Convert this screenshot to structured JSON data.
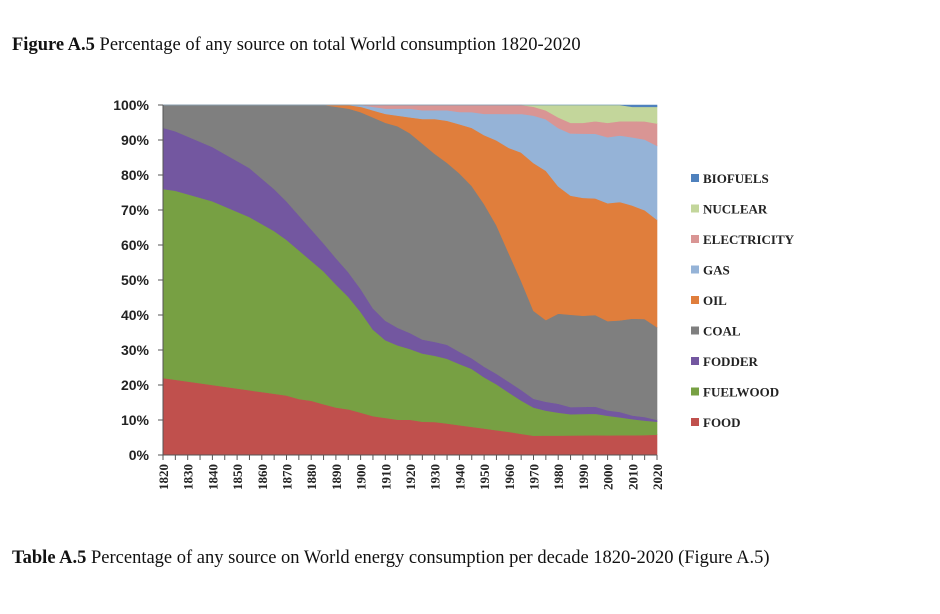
{
  "figure_caption": {
    "label": "Figure A.5",
    "text": "Percentage of any source on total World consumption 1820-2020"
  },
  "table_caption": {
    "label": "Table A.5",
    "text": "Percentage of any source on World energy consumption per decade 1820-2020 (Figure A.5)"
  },
  "chart_data": {
    "type": "area",
    "stacked": true,
    "normalized": true,
    "title": "",
    "xlabel": "",
    "ylabel": "",
    "x": [
      1820,
      1825,
      1830,
      1835,
      1840,
      1845,
      1850,
      1855,
      1860,
      1865,
      1870,
      1875,
      1880,
      1885,
      1890,
      1895,
      1900,
      1905,
      1910,
      1915,
      1920,
      1925,
      1930,
      1935,
      1940,
      1945,
      1950,
      1955,
      1960,
      1965,
      1970,
      1975,
      1980,
      1985,
      1990,
      1995,
      2000,
      2005,
      2010,
      2015,
      2020
    ],
    "x_ticks": [
      1820,
      1830,
      1840,
      1850,
      1860,
      1870,
      1880,
      1890,
      1900,
      1910,
      1920,
      1930,
      1940,
      1950,
      1960,
      1970,
      1980,
      1990,
      2000,
      2010,
      2020
    ],
    "y_ticks": [
      "0%",
      "10%",
      "20%",
      "30%",
      "40%",
      "50%",
      "60%",
      "70%",
      "80%",
      "90%",
      "100%"
    ],
    "ylim": [
      0,
      100
    ],
    "grid": false,
    "legend_position": "right",
    "series": [
      {
        "name": "FOOD",
        "color": "#C0504D",
        "values": [
          22,
          21.5,
          21,
          20.5,
          20,
          19.5,
          19,
          18.5,
          18,
          17.5,
          17,
          16,
          15.5,
          14.5,
          13.5,
          13,
          12,
          11,
          10.5,
          10,
          10,
          9.5,
          9.5,
          9,
          8.5,
          8,
          7.5,
          7,
          6.5,
          6,
          5.5,
          5.5,
          5.5,
          5.5,
          5.5,
          5.5,
          5.5,
          5.5,
          5.5,
          5.5,
          5.5
        ]
      },
      {
        "name": "FUELWOOD",
        "color": "#77A043",
        "values": [
          54,
          54,
          53.5,
          53,
          52.5,
          51.5,
          50.5,
          49.5,
          48,
          46.5,
          44.5,
          42.5,
          40,
          38,
          35,
          32,
          28.5,
          24.5,
          22,
          21,
          20,
          19.5,
          19,
          18.5,
          17.5,
          16.5,
          14.5,
          13,
          11,
          9.5,
          8,
          7,
          6.5,
          6,
          6,
          6,
          5.5,
          5,
          4.5,
          4,
          3.5
        ]
      },
      {
        "name": "FODDER",
        "color": "#7357A0",
        "values": [
          17.5,
          17,
          16.5,
          16,
          15.5,
          15,
          14.5,
          14,
          13,
          12,
          11,
          10,
          9,
          8,
          7.5,
          7,
          6.5,
          6,
          5.5,
          5,
          4.5,
          4,
          4,
          4,
          3.5,
          3,
          3,
          3,
          3,
          3,
          2.5,
          2.5,
          2.5,
          2,
          2,
          2,
          1.5,
          1.5,
          1,
          1,
          0.5
        ]
      },
      {
        "name": "COAL",
        "color": "#7F7F7F",
        "values": [
          6.5,
          7.5,
          9,
          10.5,
          12,
          14,
          16,
          18,
          21,
          24,
          27.5,
          31.5,
          35.5,
          39.5,
          43,
          46.5,
          50,
          54,
          56,
          57,
          56.5,
          56,
          54,
          52,
          51,
          49,
          46,
          42,
          36,
          31,
          25,
          23,
          25.5,
          26,
          25.5,
          25.5,
          25,
          25.5,
          27,
          27,
          25
        ]
      },
      {
        "name": "OIL",
        "color": "#E07E3C",
        "values": [
          0,
          0,
          0,
          0,
          0,
          0,
          0,
          0,
          0,
          0,
          0,
          0,
          0,
          0,
          0.5,
          1,
          1.5,
          2,
          2.5,
          3,
          4.5,
          7,
          10,
          12,
          14,
          16.5,
          19.5,
          24,
          29.5,
          36.5,
          42,
          42,
          36,
          33.5,
          33,
          32.5,
          33,
          33,
          31.5,
          30,
          29
        ]
      },
      {
        "name": "GAS",
        "color": "#95B3D7",
        "values": [
          0,
          0,
          0,
          0,
          0,
          0,
          0,
          0,
          0,
          0,
          0,
          0,
          0,
          0,
          0,
          0,
          0.5,
          1,
          1.5,
          2,
          2.5,
          2.5,
          2.5,
          3,
          3.5,
          4.5,
          6,
          7.5,
          9.5,
          11,
          13.5,
          14.5,
          16.5,
          17.5,
          18,
          18,
          18.5,
          18.5,
          19,
          19.5,
          20
        ]
      },
      {
        "name": "ELECTRICITY",
        "color": "#D99594",
        "values": [
          0,
          0,
          0,
          0,
          0,
          0,
          0,
          0,
          0,
          0,
          0,
          0,
          0,
          0,
          0,
          0,
          0,
          0.5,
          1,
          1,
          1,
          1.5,
          1.5,
          1.5,
          2,
          2,
          2.5,
          2.5,
          2.5,
          2.5,
          2.5,
          2.5,
          3,
          3,
          3,
          3.5,
          4,
          4,
          4.5,
          5,
          6
        ]
      },
      {
        "name": "NUCLEAR",
        "color": "#C3D69B",
        "values": [
          0,
          0,
          0,
          0,
          0,
          0,
          0,
          0,
          0,
          0,
          0,
          0,
          0,
          0,
          0,
          0,
          0,
          0,
          0,
          0,
          0,
          0,
          0,
          0,
          0,
          0,
          0,
          0,
          0,
          0,
          0.5,
          1.5,
          3.5,
          5,
          5,
          4.5,
          5,
          4.5,
          4,
          4,
          4.5
        ]
      },
      {
        "name": "BIOFUELS",
        "color": "#4F81BD",
        "values": [
          0,
          0,
          0,
          0,
          0,
          0,
          0,
          0,
          0,
          0,
          0,
          0,
          0,
          0,
          0,
          0,
          0,
          0,
          0,
          0,
          0,
          0,
          0,
          0,
          0,
          0,
          0,
          0,
          0,
          0,
          0,
          0,
          0,
          0,
          0,
          0,
          0,
          0,
          0.5,
          0.5,
          0.5
        ]
      }
    ]
  }
}
